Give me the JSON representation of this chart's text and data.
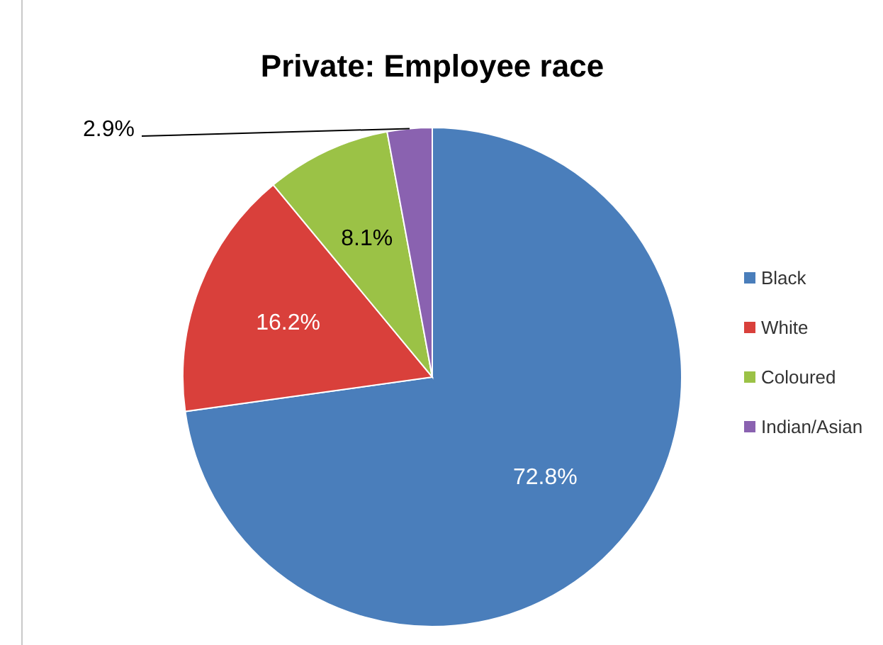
{
  "chart_data": {
    "type": "pie",
    "title": "Private: Employee race",
    "categories": [
      "Black",
      "White",
      "Coloured",
      "Indian/Asian"
    ],
    "values": [
      72.8,
      16.2,
      8.1,
      2.9
    ],
    "colors": [
      "#4a7ebb",
      "#d9403b",
      "#9bc246",
      "#8a62b0"
    ],
    "value_labels": [
      "72.8%",
      "16.2%",
      "8.1%",
      "2.9%"
    ],
    "legend": "right"
  }
}
